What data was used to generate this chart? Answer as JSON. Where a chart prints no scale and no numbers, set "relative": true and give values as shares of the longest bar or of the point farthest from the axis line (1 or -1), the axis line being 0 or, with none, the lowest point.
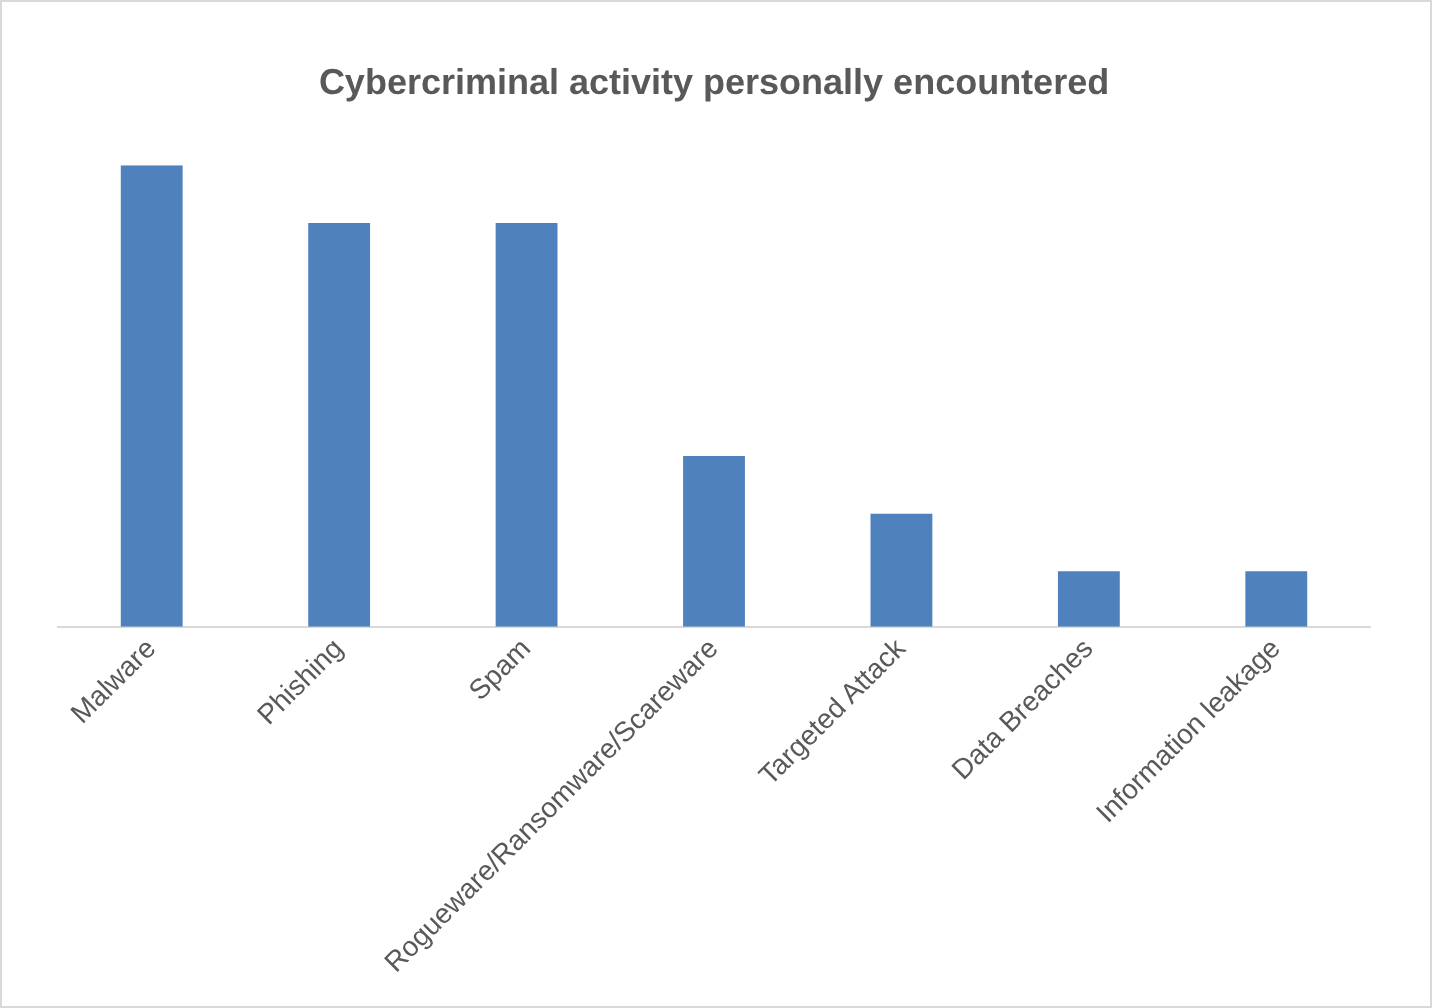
{
  "chart_data": {
    "type": "bar",
    "title": "Cybercriminal activity personally encountered",
    "categories": [
      "Malware",
      "Phishing",
      "Spam",
      "Rogueware/Ransomware/Scareware",
      "Targeted Attack",
      "Data Breaches",
      "Information leakage"
    ],
    "values": [
      1,
      0.875,
      0.875,
      0.37,
      0.245,
      0.12,
      0.12
    ],
    "color": "#4f81bd",
    "relative": true,
    "legend": false
  }
}
